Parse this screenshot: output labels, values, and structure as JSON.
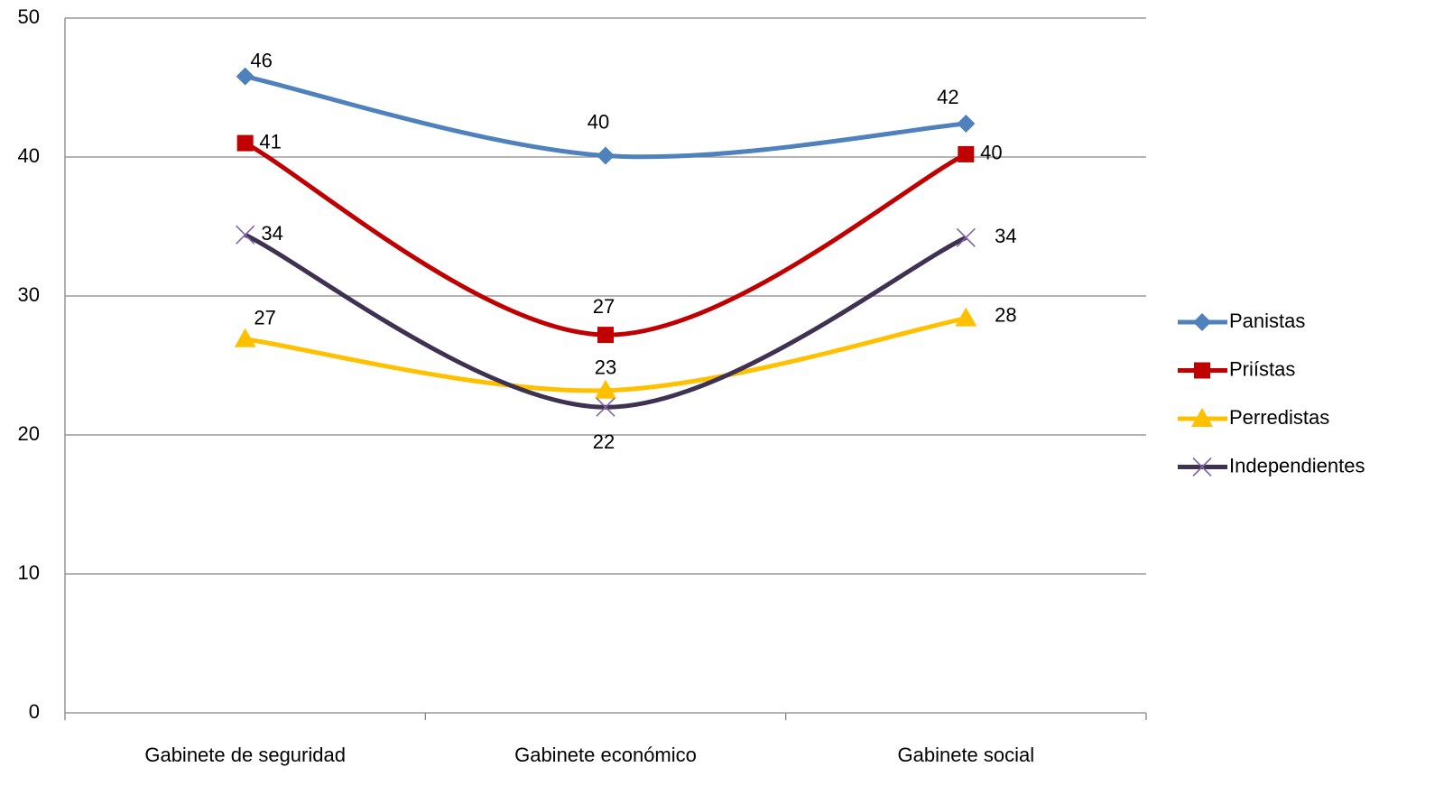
{
  "chart_data": {
    "type": "line",
    "categories": [
      "Gabinete de seguridad",
      "Gabinete económico",
      "Gabinete social"
    ],
    "series": [
      {
        "name": "Panistas",
        "color": "#4f81bd",
        "values": [
          45.8,
          40.1,
          42.4
        ],
        "value_labels": [
          "46",
          "40",
          "42"
        ]
      },
      {
        "name": "Priístas",
        "color": "#c00000",
        "values": [
          41,
          27.2,
          40.2
        ],
        "value_labels": [
          "41",
          "27",
          "40"
        ]
      },
      {
        "name": "Perredistas",
        "color": "#ffc000",
        "values": [
          26.9,
          23.2,
          28.4
        ],
        "value_labels": [
          "27",
          "23",
          "28"
        ]
      },
      {
        "name": "Independientes",
        "color": "#3f3151",
        "values": [
          34.4,
          22,
          34.2
        ],
        "value_labels": [
          "34",
          "22",
          "34"
        ]
      }
    ],
    "ylim": [
      0,
      50
    ],
    "yticks": [
      0,
      10,
      20,
      30,
      40,
      50
    ],
    "grid": true,
    "smooth": true,
    "legend": "right"
  }
}
